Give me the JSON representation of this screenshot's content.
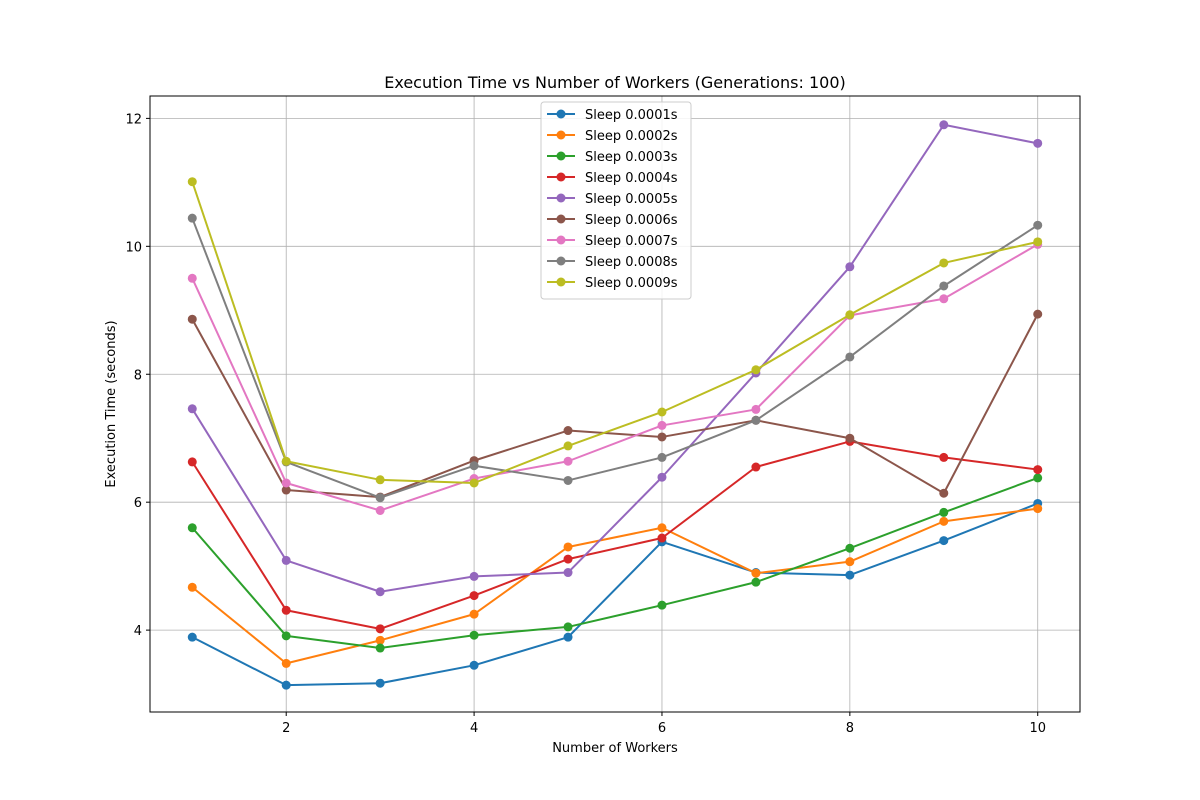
{
  "chart_data": {
    "type": "line",
    "title": "Execution Time vs Number of Workers (Generations: 100)",
    "xlabel": "Number of Workers",
    "ylabel": "Execution Time (seconds)",
    "xlim": [
      0.55,
      10.45
    ],
    "ylim": [
      2.72,
      12.35
    ],
    "xticks": [
      2,
      4,
      6,
      8,
      10
    ],
    "yticks": [
      4,
      6,
      8,
      10,
      12
    ],
    "grid": true,
    "legend_position": "top-center",
    "x": [
      1,
      2,
      3,
      4,
      5,
      6,
      7,
      8,
      9,
      10
    ],
    "series": [
      {
        "name": "Sleep 0.0001s",
        "color": "#1f77b4",
        "values": [
          3.89,
          3.14,
          3.17,
          3.45,
          3.89,
          5.38,
          4.9,
          4.86,
          5.4,
          5.98
        ]
      },
      {
        "name": "Sleep 0.0002s",
        "color": "#ff7f0e",
        "values": [
          4.67,
          3.48,
          3.84,
          4.25,
          5.3,
          5.6,
          4.89,
          5.07,
          5.7,
          5.9
        ]
      },
      {
        "name": "Sleep 0.0003s",
        "color": "#2ca02c",
        "values": [
          5.6,
          3.91,
          3.72,
          3.92,
          4.05,
          4.39,
          4.75,
          5.28,
          5.84,
          6.38
        ]
      },
      {
        "name": "Sleep 0.0004s",
        "color": "#d62728",
        "values": [
          6.63,
          4.31,
          4.02,
          4.54,
          5.11,
          5.44,
          6.55,
          6.95,
          6.7,
          6.51
        ]
      },
      {
        "name": "Sleep 0.0005s",
        "color": "#9467bd",
        "values": [
          7.46,
          5.09,
          4.6,
          4.84,
          4.9,
          6.39,
          8.02,
          9.68,
          11.9,
          11.61
        ]
      },
      {
        "name": "Sleep 0.0006s",
        "color": "#8c564b",
        "values": [
          8.86,
          6.19,
          6.08,
          6.65,
          7.12,
          7.02,
          7.28,
          7.0,
          6.14,
          8.94
        ]
      },
      {
        "name": "Sleep 0.0007s",
        "color": "#e377c2",
        "values": [
          9.5,
          6.3,
          5.87,
          6.37,
          6.64,
          7.2,
          7.45,
          8.92,
          9.18,
          10.03
        ]
      },
      {
        "name": "Sleep 0.0008s",
        "color": "#7f7f7f",
        "values": [
          10.44,
          6.63,
          6.07,
          6.57,
          6.34,
          6.7,
          7.28,
          8.27,
          9.38,
          10.33
        ]
      },
      {
        "name": "Sleep 0.0009s",
        "color": "#bcbd22",
        "values": [
          11.01,
          6.64,
          6.35,
          6.3,
          6.88,
          7.41,
          8.07,
          8.93,
          9.74,
          10.07
        ]
      }
    ]
  }
}
